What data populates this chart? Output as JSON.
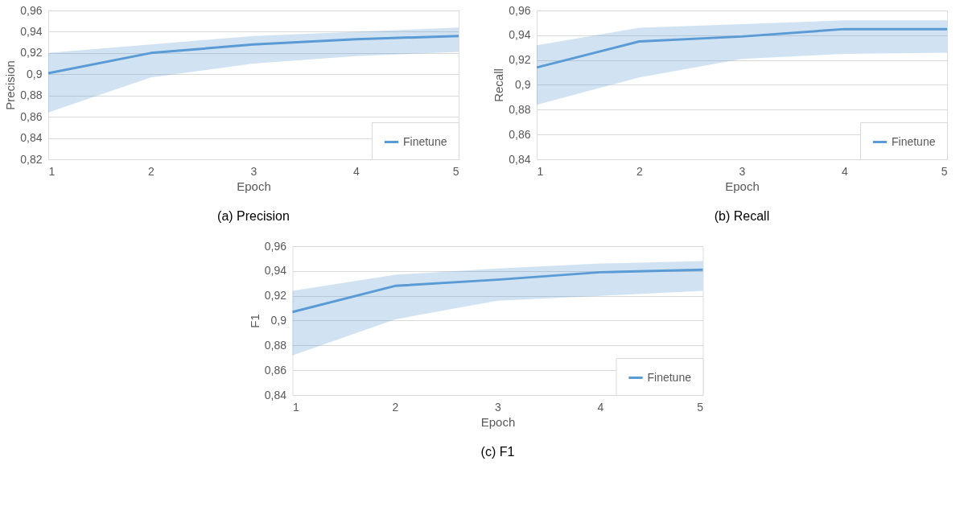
{
  "chart_data": [
    {
      "type": "line",
      "xlabel": "Epoch",
      "ylabel": "Precision",
      "annotations": [
        "(a)  Precision"
      ],
      "x": [
        1,
        2,
        3,
        4,
        5
      ],
      "xlim": [
        1,
        5
      ],
      "xticks": [
        1,
        2,
        3,
        4,
        5
      ],
      "ylim": [
        0.82,
        0.96
      ],
      "yticks": [
        {
          "value": 0.82,
          "label": "0,82"
        },
        {
          "value": 0.84,
          "label": "0,84"
        },
        {
          "value": 0.86,
          "label": "0,86"
        },
        {
          "value": 0.88,
          "label": "0,88"
        },
        {
          "value": 0.9,
          "label": "0,9"
        },
        {
          "value": 0.92,
          "label": "0,92"
        },
        {
          "value": 0.94,
          "label": "0,94"
        },
        {
          "value": 0.96,
          "label": "0,96"
        }
      ],
      "grid": "y",
      "legend": "bottom right",
      "line_style": "solid",
      "marker": "none",
      "series": [
        {
          "name": "Finetune",
          "color": "#5b9bd5",
          "values": [
            0.901,
            0.92,
            0.928,
            0.933,
            0.936
          ],
          "lower": [
            0.864,
            0.897,
            0.91,
            0.917,
            0.921
          ],
          "upper": [
            0.92,
            0.928,
            0.936,
            0.94,
            0.944
          ]
        }
      ]
    },
    {
      "type": "line",
      "xlabel": "Epoch",
      "ylabel": "Recall",
      "annotations": [
        "(b)  Recall"
      ],
      "x": [
        1,
        2,
        3,
        4,
        5
      ],
      "xlim": [
        1,
        5
      ],
      "xticks": [
        1,
        2,
        3,
        4,
        5
      ],
      "ylim": [
        0.84,
        0.96
      ],
      "yticks": [
        {
          "value": 0.84,
          "label": "0,84"
        },
        {
          "value": 0.86,
          "label": "0,86"
        },
        {
          "value": 0.88,
          "label": "0,88"
        },
        {
          "value": 0.9,
          "label": "0,9"
        },
        {
          "value": 0.92,
          "label": "0,92"
        },
        {
          "value": 0.94,
          "label": "0,94"
        },
        {
          "value": 0.96,
          "label": "0,96"
        }
      ],
      "grid": "y",
      "legend": "bottom right",
      "line_style": "solid",
      "marker": "none",
      "series": [
        {
          "name": "Finetune",
          "color": "#5b9bd5",
          "values": [
            0.914,
            0.935,
            0.939,
            0.945,
            0.945
          ],
          "lower": [
            0.884,
            0.906,
            0.921,
            0.925,
            0.926
          ],
          "upper": [
            0.932,
            0.946,
            0.949,
            0.952,
            0.952
          ]
        }
      ]
    },
    {
      "type": "line",
      "xlabel": "Epoch",
      "ylabel": "F1",
      "annotations": [
        "(c)  F1"
      ],
      "x": [
        1,
        2,
        3,
        4,
        5
      ],
      "xlim": [
        1,
        5
      ],
      "xticks": [
        1,
        2,
        3,
        4,
        5
      ],
      "ylim": [
        0.84,
        0.96
      ],
      "yticks": [
        {
          "value": 0.84,
          "label": "0,84"
        },
        {
          "value": 0.86,
          "label": "0,86"
        },
        {
          "value": 0.88,
          "label": "0,88"
        },
        {
          "value": 0.9,
          "label": "0,9"
        },
        {
          "value": 0.92,
          "label": "0,92"
        },
        {
          "value": 0.94,
          "label": "0,94"
        },
        {
          "value": 0.96,
          "label": "0,96"
        }
      ],
      "grid": "y",
      "legend": "bottom right",
      "line_style": "solid",
      "marker": "none",
      "series": [
        {
          "name": "Finetune",
          "color": "#5b9bd5",
          "values": [
            0.907,
            0.928,
            0.933,
            0.939,
            0.941
          ],
          "lower": [
            0.872,
            0.901,
            0.916,
            0.92,
            0.924
          ],
          "upper": [
            0.924,
            0.937,
            0.942,
            0.946,
            0.948
          ]
        }
      ]
    }
  ]
}
